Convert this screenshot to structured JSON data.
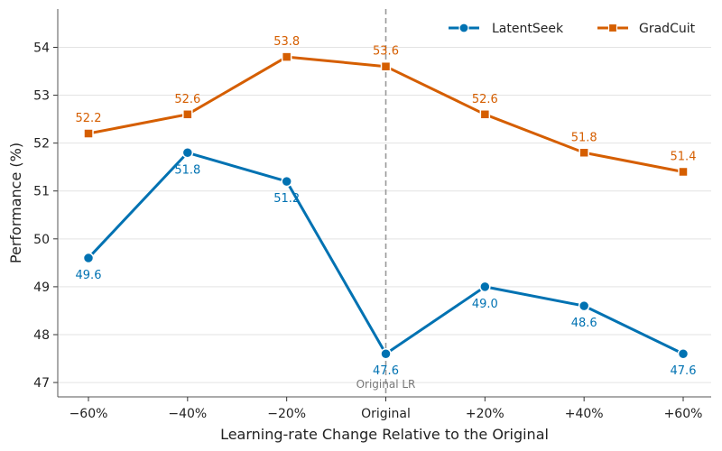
{
  "chart_data": {
    "type": "line",
    "xlabel": "Learning-rate Change Relative to the Original",
    "ylabel": "Performance (%)",
    "categories": [
      "−60%",
      "−40%",
      "−20%",
      "Original",
      "+20%",
      "+40%",
      "+60%"
    ],
    "ylim": [
      46.7,
      54.8
    ],
    "yticks": [
      47,
      48,
      49,
      50,
      51,
      52,
      53,
      54
    ],
    "grid": "horizontal",
    "legend_position": "top-right",
    "series": [
      {
        "name": "LatentSeek",
        "values": [
          49.6,
          51.8,
          51.2,
          47.6,
          49.0,
          48.6,
          47.6
        ],
        "labels": [
          "49.6",
          "51.8",
          "51.2",
          "47.6",
          "49.0",
          "48.6",
          "47.6"
        ],
        "color": "#0072b2",
        "marker": "circle",
        "label_position": "below"
      },
      {
        "name": "GradCuit",
        "values": [
          52.2,
          52.6,
          53.8,
          53.6,
          52.6,
          51.8,
          51.4
        ],
        "labels": [
          "52.2",
          "52.6",
          "53.8",
          "53.6",
          "52.6",
          "51.8",
          "51.4"
        ],
        "color": "#d55e00",
        "marker": "square",
        "label_position": "above"
      }
    ],
    "reference_line": {
      "category_index": 3,
      "label": "Original LR",
      "color": "#999999",
      "style": "dashed"
    }
  }
}
